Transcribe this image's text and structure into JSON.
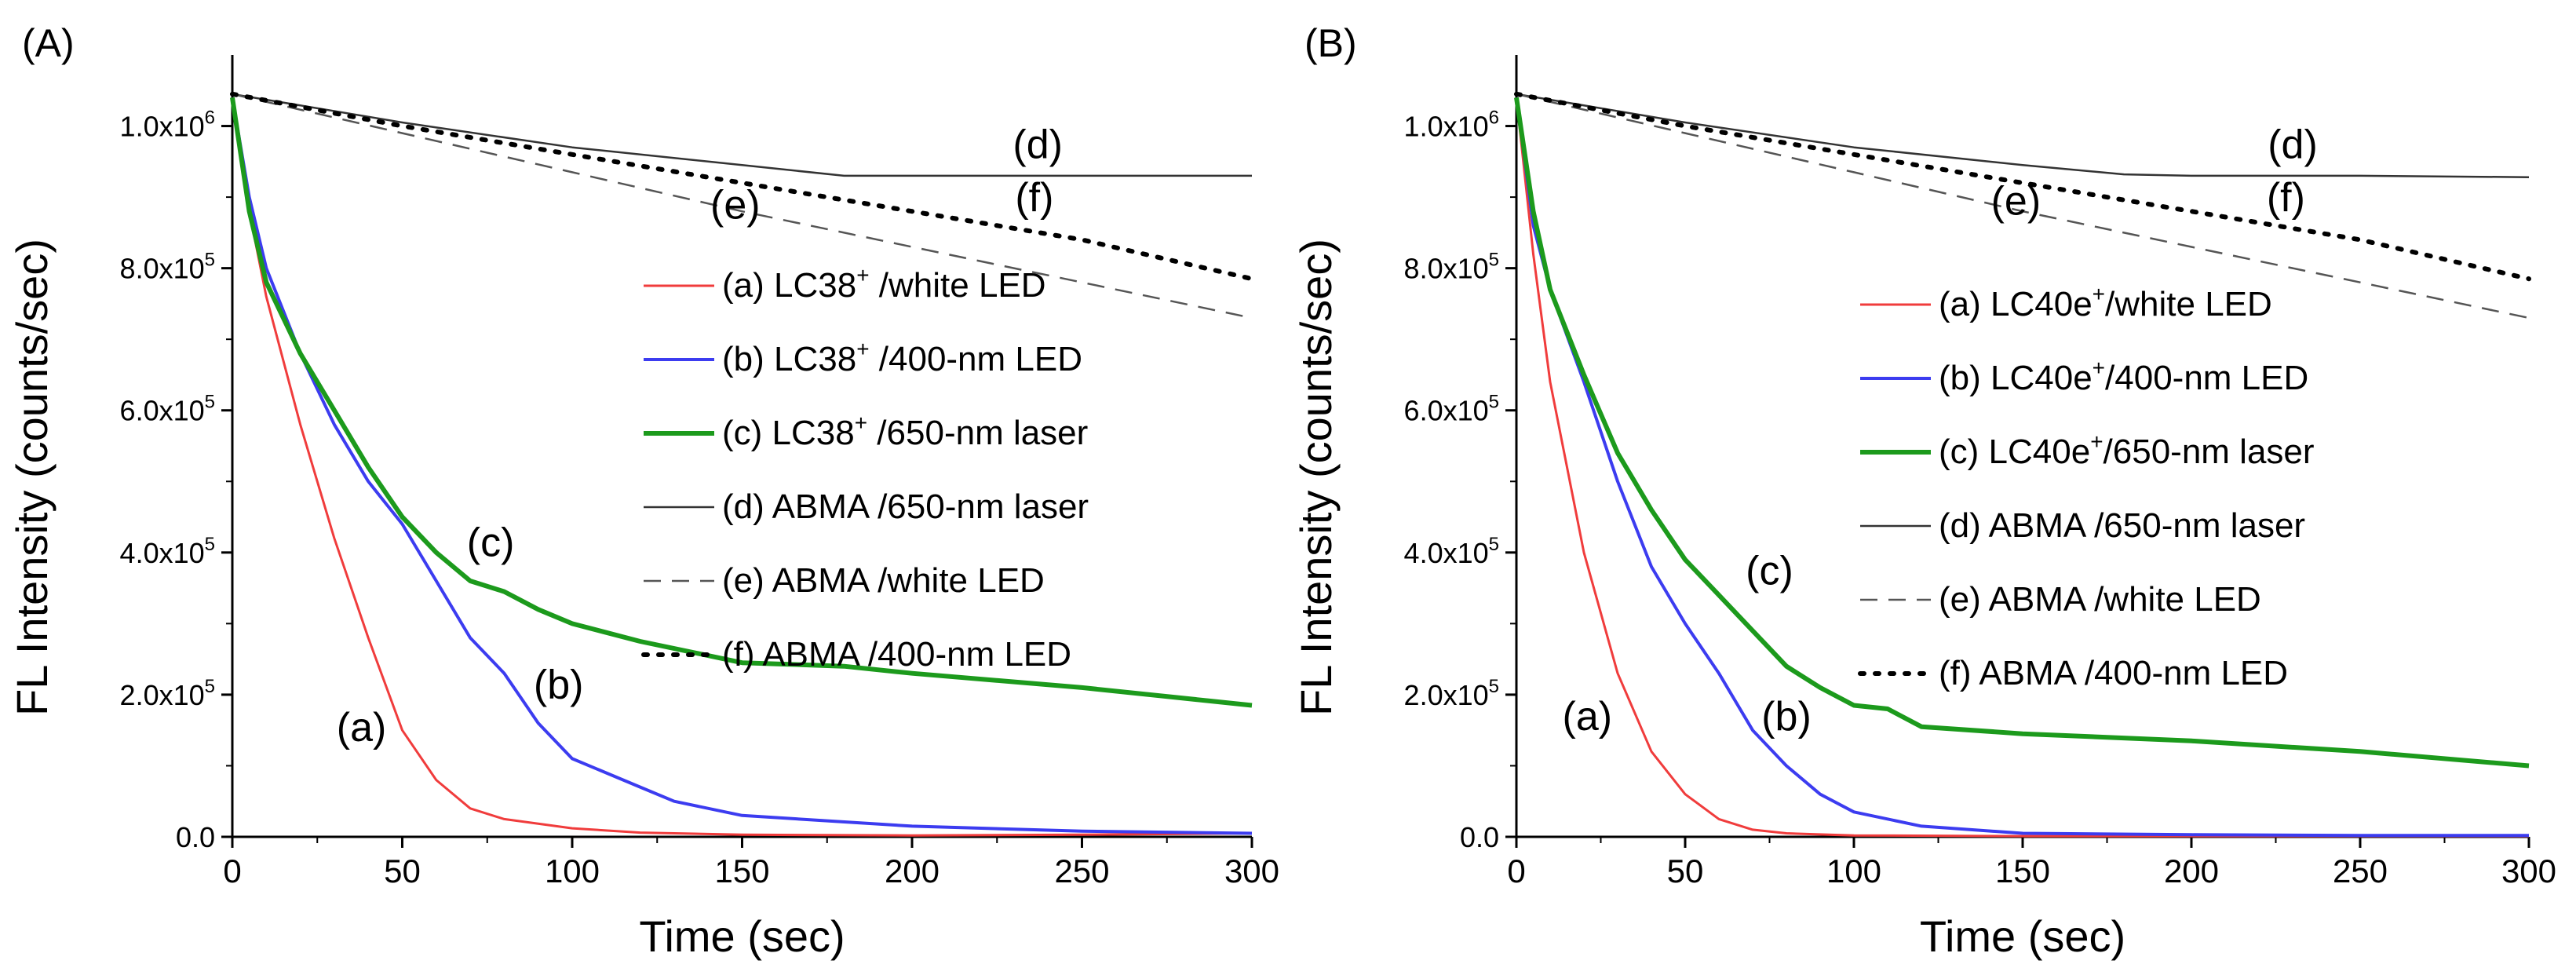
{
  "chart_data": [
    {
      "panel": "(A)",
      "type": "line",
      "xlabel": "Time (sec)",
      "ylabel": "FL Intensity (counts/sec)",
      "xlim": [
        0,
        300
      ],
      "ylim": [
        0,
        1100000
      ],
      "xticks": [
        "0",
        "50",
        "100",
        "150",
        "200",
        "250",
        "300"
      ],
      "yticks": [
        {
          "base": "0.0",
          "exp": ""
        },
        {
          "base": "2.0x10",
          "exp": "5"
        },
        {
          "base": "4.0x10",
          "exp": "5"
        },
        {
          "base": "6.0x10",
          "exp": "5"
        },
        {
          "base": "8.0x10",
          "exp": "5"
        },
        {
          "base": "1.0x10",
          "exp": "6"
        }
      ],
      "series": [
        {
          "id": "a",
          "name": "(a) LC38",
          "sup": "+",
          "rest": " /white LED",
          "color": "#f03c3c",
          "dash": "solid",
          "width": 3,
          "x": [
            0,
            5,
            10,
            20,
            30,
            40,
            50,
            60,
            70,
            80,
            100,
            120,
            150,
            200,
            250,
            300
          ],
          "y": [
            1040000,
            880000,
            760000,
            580000,
            420000,
            280000,
            150000,
            80000,
            40000,
            25000,
            12000,
            6000,
            3000,
            2000,
            3000,
            5000
          ]
        },
        {
          "id": "b",
          "name": "(b) LC38",
          "sup": "+",
          "rest": " /400-nm LED",
          "color": "#3c3cf0",
          "dash": "solid",
          "width": 4,
          "x": [
            0,
            5,
            10,
            20,
            30,
            40,
            50,
            60,
            70,
            80,
            90,
            100,
            120,
            130,
            150,
            200,
            250,
            300
          ],
          "y": [
            1040000,
            900000,
            800000,
            680000,
            580000,
            500000,
            440000,
            360000,
            280000,
            230000,
            160000,
            110000,
            70000,
            50000,
            30000,
            15000,
            8000,
            5000
          ]
        },
        {
          "id": "c",
          "name": "(c) LC38",
          "sup": "+",
          "rest": " /650-nm laser",
          "color": "#1c9a1c",
          "dash": "solid",
          "width": 6,
          "x": [
            0,
            5,
            10,
            20,
            30,
            40,
            50,
            60,
            70,
            80,
            90,
            100,
            120,
            150,
            180,
            200,
            250,
            300
          ],
          "y": [
            1040000,
            880000,
            780000,
            680000,
            600000,
            520000,
            450000,
            400000,
            360000,
            345000,
            320000,
            300000,
            275000,
            245000,
            240000,
            230000,
            210000,
            185000
          ]
        },
        {
          "id": "d",
          "name": "(d) ABMA",
          "sup": "",
          "rest": " /650-nm laser",
          "color": "#333333",
          "dash": "solid",
          "width": 2.5,
          "x": [
            0,
            50,
            100,
            150,
            180,
            200,
            250,
            300
          ],
          "y": [
            1045000,
            1005000,
            970000,
            945000,
            930000,
            930000,
            930000,
            930000
          ]
        },
        {
          "id": "e",
          "name": "(e) ABMA",
          "sup": "",
          "rest": " /white LED",
          "color": "#555555",
          "dash": "dashed",
          "width": 2.5,
          "x": [
            0,
            50,
            100,
            150,
            200,
            250,
            300
          ],
          "y": [
            1045000,
            990000,
            935000,
            880000,
            830000,
            780000,
            730000
          ]
        },
        {
          "id": "f",
          "name": "(f) ABMA",
          "sup": "",
          "rest": " /400-nm LED",
          "color": "#000000",
          "dash": "dotted",
          "width": 6,
          "x": [
            0,
            50,
            100,
            150,
            200,
            250,
            300
          ],
          "y": [
            1045000,
            1000000,
            960000,
            920000,
            880000,
            840000,
            785000
          ]
        }
      ],
      "annotations": [
        {
          "text": "(a)",
          "x": 38,
          "y": 135000
        },
        {
          "text": "(b)",
          "x": 96,
          "y": 195000
        },
        {
          "text": "(c)",
          "x": 76,
          "y": 395000
        },
        {
          "text": "(d)",
          "x": 237,
          "y": 955000
        },
        {
          "text": "(e)",
          "x": 148,
          "y": 870000
        },
        {
          "text": "(f)",
          "x": 236,
          "y": 880000
        }
      ]
    },
    {
      "panel": "(B)",
      "type": "line",
      "xlabel": "Time (sec)",
      "ylabel": "FL Intensity (counts/sec)",
      "xlim": [
        0,
        300
      ],
      "ylim": [
        0,
        1100000
      ],
      "xticks": [
        "0",
        "50",
        "100",
        "150",
        "200",
        "250",
        "300"
      ],
      "yticks": [
        {
          "base": "0.0",
          "exp": ""
        },
        {
          "base": "2.0x10",
          "exp": "5"
        },
        {
          "base": "4.0x10",
          "exp": "5"
        },
        {
          "base": "6.0x10",
          "exp": "5"
        },
        {
          "base": "8.0x10",
          "exp": "5"
        },
        {
          "base": "1.0x10",
          "exp": "6"
        }
      ],
      "series": [
        {
          "id": "a",
          "name": "(a) LC40e",
          "sup": "+",
          "rest": "/white LED",
          "color": "#f03c3c",
          "dash": "solid",
          "width": 3,
          "x": [
            0,
            5,
            10,
            20,
            30,
            40,
            50,
            60,
            70,
            80,
            100,
            150,
            200,
            250,
            300
          ],
          "y": [
            1040000,
            820000,
            640000,
            400000,
            230000,
            120000,
            60000,
            25000,
            10000,
            5000,
            2000,
            1000,
            1000,
            1000,
            1000
          ]
        },
        {
          "id": "b",
          "name": "(b) LC40e",
          "sup": "+",
          "rest": "/400-nm LED",
          "color": "#3c3cf0",
          "dash": "solid",
          "width": 4,
          "x": [
            0,
            5,
            10,
            20,
            30,
            40,
            50,
            60,
            70,
            80,
            90,
            100,
            120,
            150,
            200,
            250,
            300
          ],
          "y": [
            1040000,
            860000,
            770000,
            640000,
            500000,
            380000,
            300000,
            230000,
            150000,
            100000,
            60000,
            35000,
            15000,
            5000,
            3000,
            2000,
            2000
          ]
        },
        {
          "id": "c",
          "name": "(c) LC40e",
          "sup": "+",
          "rest": "/650-nm laser",
          "color": "#1c9a1c",
          "dash": "solid",
          "width": 6,
          "x": [
            0,
            5,
            10,
            20,
            30,
            40,
            50,
            60,
            70,
            80,
            90,
            100,
            110,
            120,
            150,
            200,
            250,
            300
          ],
          "y": [
            1040000,
            880000,
            770000,
            650000,
            540000,
            460000,
            390000,
            340000,
            290000,
            240000,
            210000,
            185000,
            180000,
            155000,
            145000,
            135000,
            120000,
            100000
          ]
        },
        {
          "id": "d",
          "name": "(d) ABMA",
          "sup": "",
          "rest": " /650-nm laser",
          "color": "#333333",
          "dash": "solid",
          "width": 2.5,
          "x": [
            0,
            50,
            100,
            150,
            180,
            200,
            250,
            300
          ],
          "y": [
            1045000,
            1005000,
            970000,
            945000,
            932000,
            930000,
            930000,
            928000
          ]
        },
        {
          "id": "e",
          "name": "(e) ABMA",
          "sup": "",
          "rest": " /white LED",
          "color": "#555555",
          "dash": "dashed",
          "width": 2.5,
          "x": [
            0,
            50,
            100,
            150,
            200,
            250,
            300
          ],
          "y": [
            1045000,
            990000,
            935000,
            880000,
            830000,
            780000,
            730000
          ]
        },
        {
          "id": "f",
          "name": "(f) ABMA",
          "sup": "",
          "rest": " /400-nm LED",
          "color": "#000000",
          "dash": "dotted",
          "width": 6,
          "x": [
            0,
            50,
            100,
            150,
            200,
            250,
            300
          ],
          "y": [
            1045000,
            1000000,
            960000,
            920000,
            880000,
            840000,
            785000
          ]
        }
      ],
      "annotations": [
        {
          "text": "(a)",
          "x": 21,
          "y": 150000
        },
        {
          "text": "(b)",
          "x": 80,
          "y": 150000
        },
        {
          "text": "(c)",
          "x": 75,
          "y": 355000
        },
        {
          "text": "(d)",
          "x": 230,
          "y": 955000
        },
        {
          "text": "(e)",
          "x": 148,
          "y": 875000
        },
        {
          "text": "(f)",
          "x": 228,
          "y": 880000
        }
      ]
    }
  ]
}
